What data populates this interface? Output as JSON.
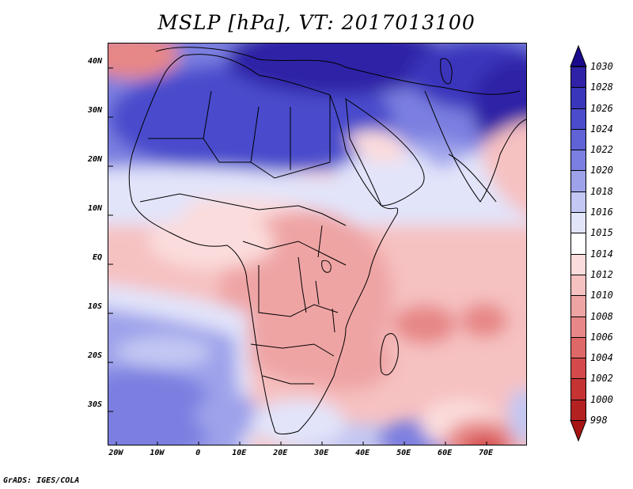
{
  "title": "MSLP [hPa], VT: 2017013100",
  "credit": "GrADS: IGES/COLA",
  "map": {
    "projection": "latlon",
    "lon_range": [
      -22,
      80
    ],
    "lat_range": [
      -38,
      44
    ],
    "lat_ticks": [
      {
        "value": 40,
        "label": "40N"
      },
      {
        "value": 30,
        "label": "30N"
      },
      {
        "value": 20,
        "label": "20N"
      },
      {
        "value": 10,
        "label": "10N"
      },
      {
        "value": 0,
        "label": "EQ"
      },
      {
        "value": -10,
        "label": "10S"
      },
      {
        "value": -20,
        "label": "20S"
      },
      {
        "value": -30,
        "label": "30S"
      }
    ],
    "lon_ticks": [
      {
        "value": -20,
        "label": "20W"
      },
      {
        "value": -10,
        "label": "10W"
      },
      {
        "value": 0,
        "label": "0"
      },
      {
        "value": 10,
        "label": "10E"
      },
      {
        "value": 20,
        "label": "20E"
      },
      {
        "value": 30,
        "label": "30E"
      },
      {
        "value": 40,
        "label": "40E"
      },
      {
        "value": 50,
        "label": "50E"
      },
      {
        "value": 60,
        "label": "60E"
      },
      {
        "value": 70,
        "label": "70E"
      }
    ]
  },
  "colorbar": {
    "top_arrow_color": "#1a0a8c",
    "bottom_arrow_color": "#a81414",
    "levels": [
      {
        "label": "1030",
        "color": "#251292"
      },
      {
        "label": "1028",
        "color": "#2f22a6"
      },
      {
        "label": "1026",
        "color": "#3a36bc"
      },
      {
        "label": "1024",
        "color": "#4a4ccc"
      },
      {
        "label": "1022",
        "color": "#5f63d6"
      },
      {
        "label": "1020",
        "color": "#7b7fe0"
      },
      {
        "label": "1018",
        "color": "#9ea2ea"
      },
      {
        "label": "1016",
        "color": "#c3c7f3"
      },
      {
        "label": "1015",
        "color": "#e2e4fa"
      },
      {
        "label": "1014",
        "color": "#ffffff"
      },
      {
        "label": "1012",
        "color": "#fbdcdc"
      },
      {
        "label": "1010",
        "color": "#f6c1c1"
      },
      {
        "label": "1008",
        "color": "#efa4a4"
      },
      {
        "label": "1006",
        "color": "#e78787"
      },
      {
        "label": "1004",
        "color": "#de6767"
      },
      {
        "label": "1002",
        "color": "#d44a4a"
      },
      {
        "label": "1000",
        "color": "#c63333"
      },
      {
        "label": "998",
        "color": "#b42121"
      }
    ]
  }
}
